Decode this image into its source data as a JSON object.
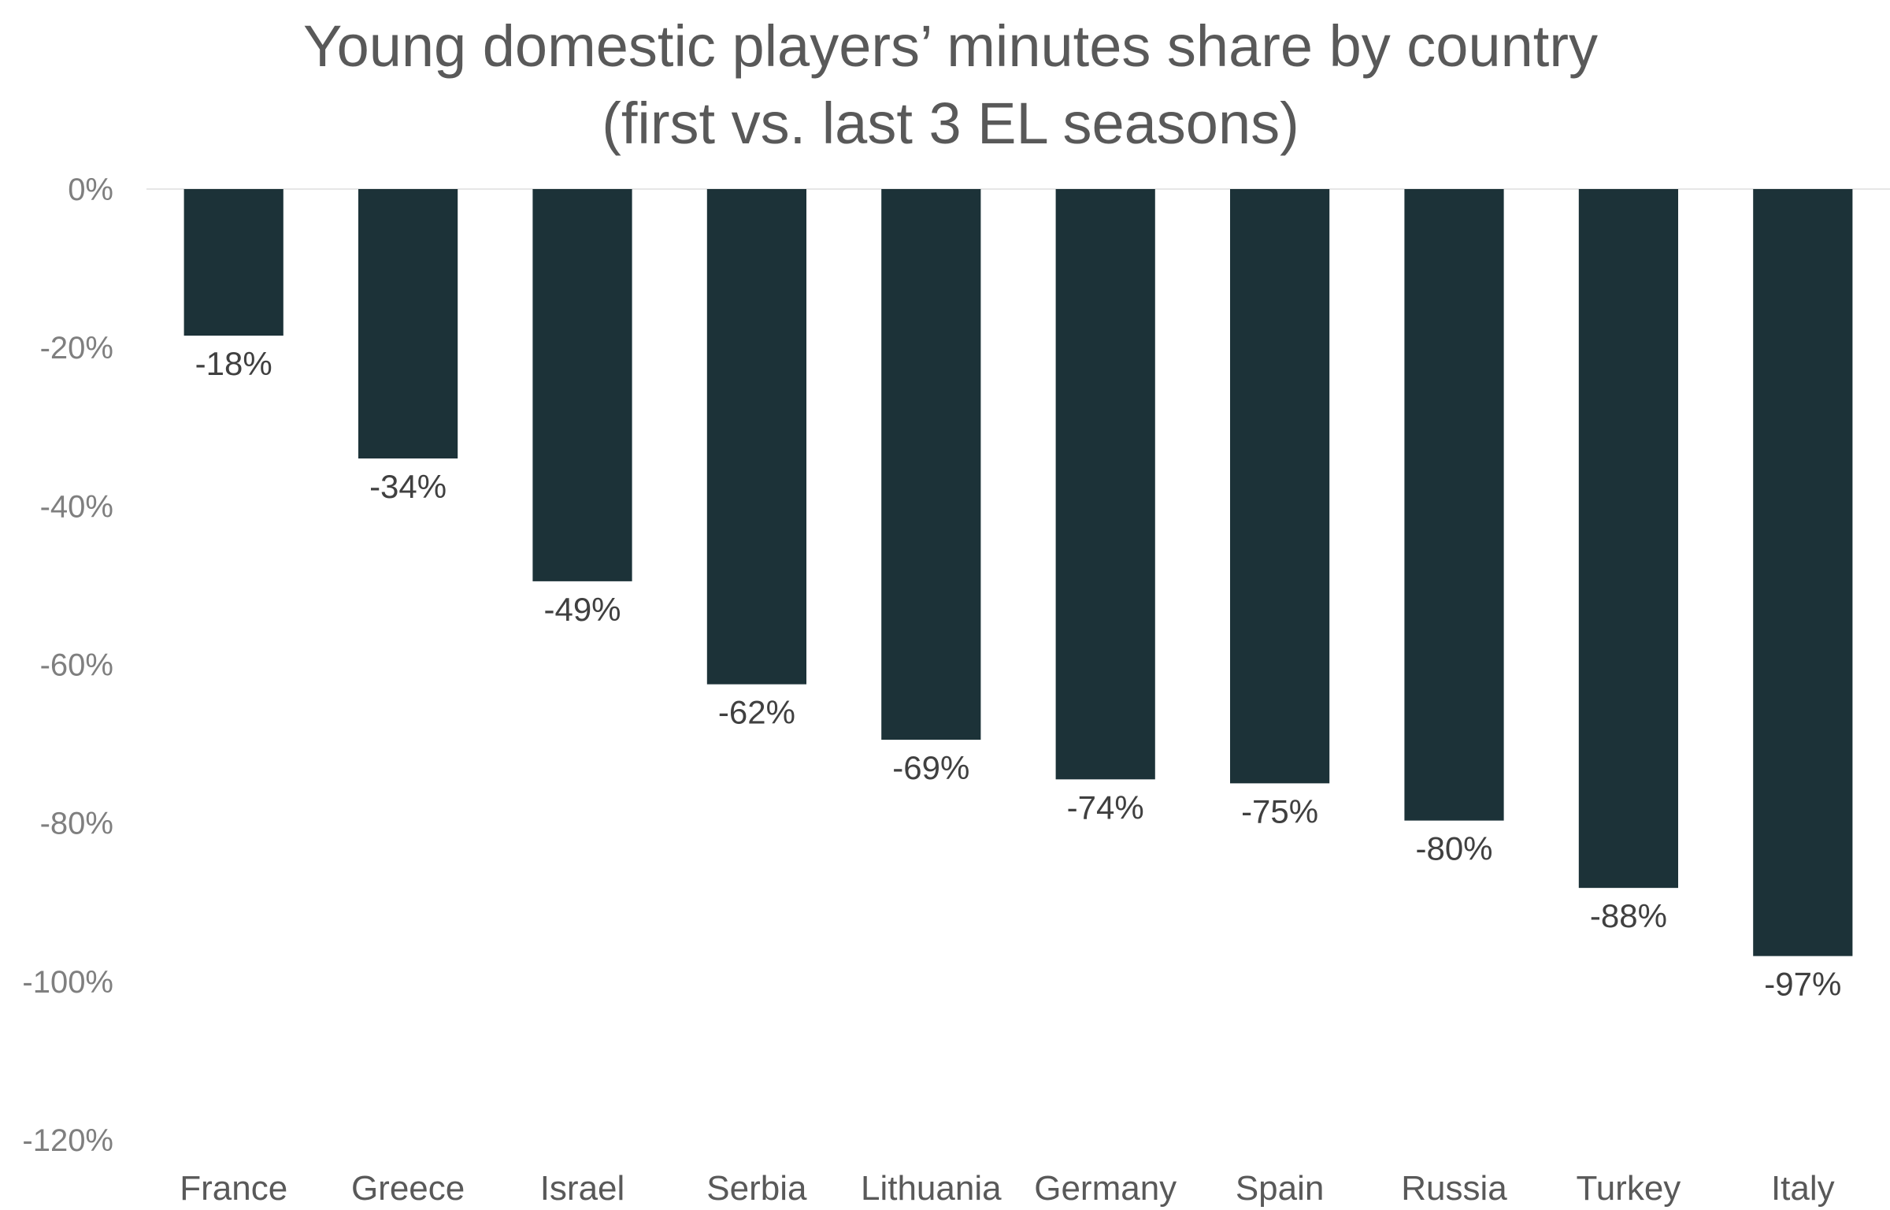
{
  "chart_data": {
    "type": "bar",
    "title": [
      "Young domestic players’ minutes share by country",
      "(first vs. last 3 EL seasons)"
    ],
    "categories": [
      "France",
      "Greece",
      "Israel",
      "Serbia",
      "Lithuania",
      "Germany",
      "Spain",
      "Russia",
      "Turkey",
      "Italy"
    ],
    "values": [
      -18.5,
      -34,
      -49.5,
      -62.5,
      -69.5,
      -74.5,
      -75,
      -79.7,
      -88.2,
      -96.8
    ],
    "data_labels": [
      "-18%",
      "-34%",
      "-49%",
      "-62%",
      "-69%",
      "-74%",
      "-75%",
      "-80%",
      "-88%",
      "-97%"
    ],
    "ylim": [
      -120,
      0
    ],
    "yticks": [
      0,
      -20,
      -40,
      -60,
      -80,
      -100,
      -120
    ],
    "ytick_labels": [
      "0%",
      "-20%",
      "-40%",
      "-60%",
      "-80%",
      "-100%",
      "-120%"
    ],
    "xlabel": "",
    "ylabel": "",
    "grid": false,
    "legend": "none",
    "bar_color": "#1c3238"
  }
}
